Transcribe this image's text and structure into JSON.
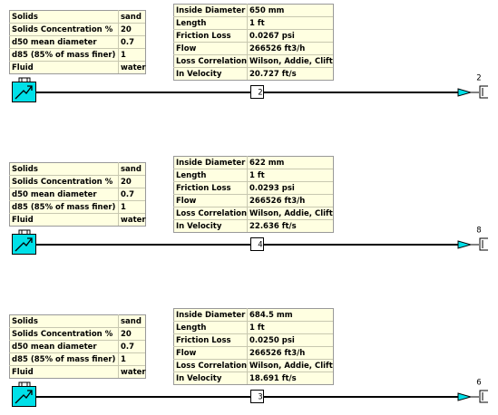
{
  "models": [
    {
      "solids": [
        [
          "Solids",
          "sand"
        ],
        [
          "Solids Concentration %",
          "20"
        ],
        [
          "d50 mean diameter",
          "0.7"
        ],
        [
          "d85 (85% of mass finer)",
          "1"
        ],
        [
          "Fluid",
          "water"
        ]
      ],
      "pipe": [
        [
          "Inside Diameter",
          "650 mm"
        ],
        [
          "Length",
          "1 ft"
        ],
        [
          "Friction Loss",
          "0.0267 psi"
        ],
        [
          "Flow",
          "266526 ft3/h"
        ],
        [
          "Loss Correlation",
          "Wilson, Addie, Clift"
        ],
        [
          "In Velocity",
          "20.727 ft/s"
        ]
      ],
      "pipe_id": "2",
      "outlet_id": "2"
    },
    {
      "solids": [
        [
          "Solids",
          "sand"
        ],
        [
          "Solids Concentration %",
          "20"
        ],
        [
          "d50 mean diameter",
          "0.7"
        ],
        [
          "d85 (85% of mass finer)",
          "1"
        ],
        [
          "Fluid",
          "water"
        ]
      ],
      "pipe": [
        [
          "Inside Diameter",
          "622 mm"
        ],
        [
          "Length",
          "1 ft"
        ],
        [
          "Friction Loss",
          "0.0293 psi"
        ],
        [
          "Flow",
          "266526 ft3/h"
        ],
        [
          "Loss Correlation",
          "Wilson, Addie, Clift"
        ],
        [
          "In Velocity",
          "22.636 ft/s"
        ]
      ],
      "pipe_id": "4",
      "outlet_id": "8"
    },
    {
      "solids": [
        [
          "Solids",
          "sand"
        ],
        [
          "Solids Concentration %",
          "20"
        ],
        [
          "d50 mean diameter",
          "0.7"
        ],
        [
          "d85 (85% of mass finer)",
          "1"
        ],
        [
          "Fluid",
          "water"
        ]
      ],
      "pipe": [
        [
          "Inside Diameter",
          "684.5 mm"
        ],
        [
          "Length",
          "1 ft"
        ],
        [
          "Friction Loss",
          "0.0250 psi"
        ],
        [
          "Flow",
          "266526 ft3/h"
        ],
        [
          "Loss Correlation",
          "Wilson, Addie, Clift"
        ],
        [
          "In Velocity",
          "18.691 ft/s"
        ]
      ],
      "pipe_id": "3",
      "outlet_id": "6"
    }
  ]
}
